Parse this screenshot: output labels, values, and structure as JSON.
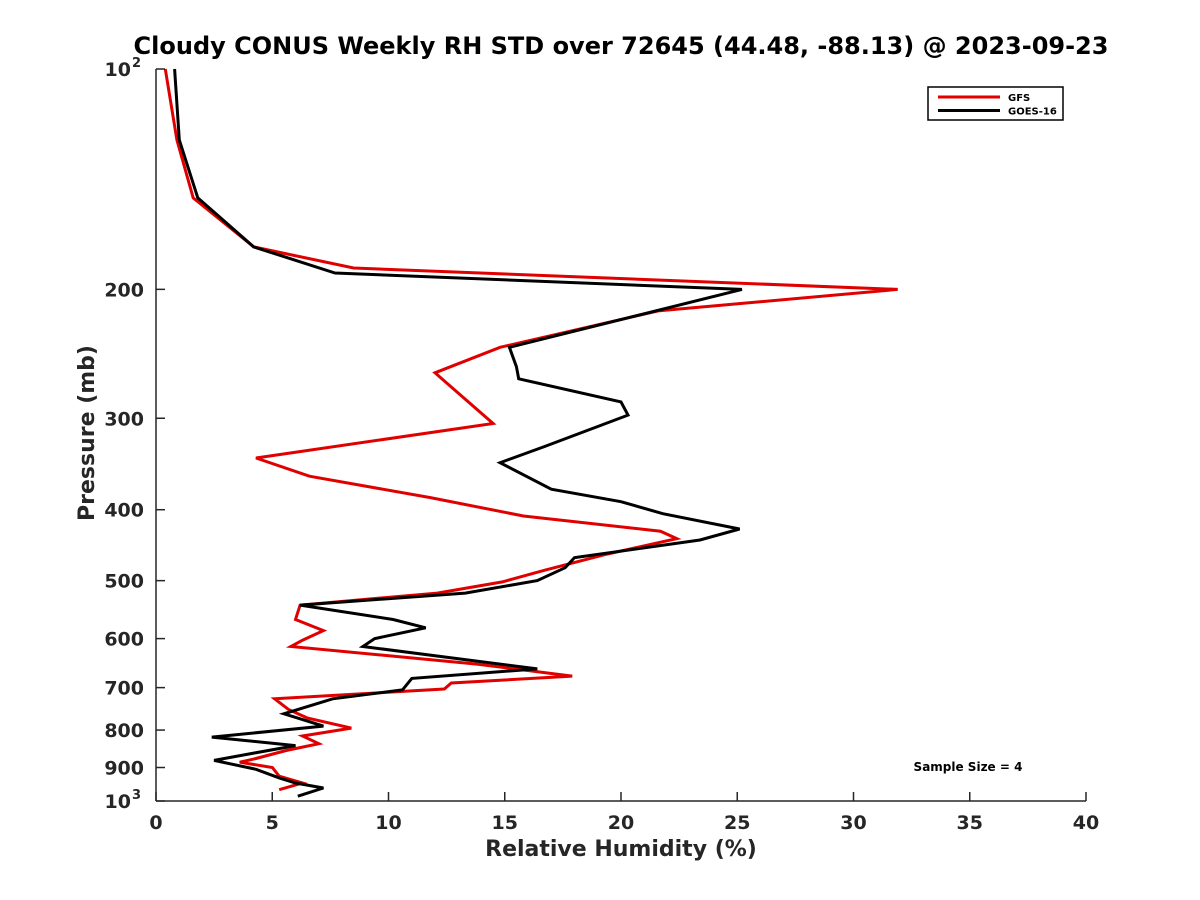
{
  "chart_data": {
    "type": "line",
    "title": "Cloudy CONUS Weekly RH STD over 72645 (44.48, -88.13) @ 2023-09-23",
    "xlabel": "Relative Humidity (%)",
    "ylabel": "Pressure (mb)",
    "xlim": [
      0,
      40
    ],
    "ylim": [
      100,
      1000
    ],
    "y_scale": "log",
    "y_reversed": true,
    "x_ticks": [
      {
        "value": 0,
        "label": "0"
      },
      {
        "value": 5,
        "label": "5"
      },
      {
        "value": 10,
        "label": "10"
      },
      {
        "value": 15,
        "label": "15"
      },
      {
        "value": 20,
        "label": "20"
      },
      {
        "value": 25,
        "label": "25"
      },
      {
        "value": 30,
        "label": "30"
      },
      {
        "value": 35,
        "label": "35"
      },
      {
        "value": 40,
        "label": "40"
      }
    ],
    "y_ticks": [
      {
        "value": 100,
        "label": "10",
        "sup": "2"
      },
      {
        "value": 200,
        "label": "200"
      },
      {
        "value": 300,
        "label": "300"
      },
      {
        "value": 400,
        "label": "400"
      },
      {
        "value": 500,
        "label": "500"
      },
      {
        "value": 600,
        "label": "600"
      },
      {
        "value": 700,
        "label": "700"
      },
      {
        "value": 800,
        "label": "800"
      },
      {
        "value": 900,
        "label": "900"
      },
      {
        "value": 1000,
        "label": "10",
        "sup": "3"
      }
    ],
    "grid": false,
    "legend_position": "top-right",
    "series": [
      {
        "name": "GFS",
        "color": "#e00000",
        "points": [
          [
            0.4,
            100
          ],
          [
            0.9,
            125
          ],
          [
            1.6,
            150
          ],
          [
            4.2,
            175
          ],
          [
            8.5,
            187
          ],
          [
            31.9,
            200
          ],
          [
            21.6,
            214
          ],
          [
            14.8,
            240
          ],
          [
            12.0,
            260
          ],
          [
            14.5,
            305
          ],
          [
            4.3,
            340
          ],
          [
            6.6,
            360
          ],
          [
            11.8,
            385
          ],
          [
            15.8,
            408
          ],
          [
            21.7,
            428
          ],
          [
            22.4,
            438
          ],
          [
            19.4,
            460
          ],
          [
            16.7,
            484
          ],
          [
            14.9,
            502
          ],
          [
            12.1,
            520
          ],
          [
            6.2,
            540
          ],
          [
            6.0,
            565
          ],
          [
            7.2,
            585
          ],
          [
            6.3,
            603
          ],
          [
            5.8,
            615
          ],
          [
            13.8,
            650
          ],
          [
            17.9,
            675
          ],
          [
            12.7,
            690
          ],
          [
            12.4,
            703
          ],
          [
            5.1,
            725
          ],
          [
            5.7,
            750
          ],
          [
            6.5,
            770
          ],
          [
            8.4,
            795
          ],
          [
            6.3,
            815
          ],
          [
            7.0,
            835
          ],
          [
            5.6,
            853
          ],
          [
            4.3,
            875
          ],
          [
            3.6,
            885
          ],
          [
            5.0,
            900
          ],
          [
            5.3,
            925
          ],
          [
            6.3,
            945
          ],
          [
            5.3,
            965
          ]
        ]
      },
      {
        "name": "GOES-16",
        "color": "#000000",
        "points": [
          [
            0.8,
            100
          ],
          [
            1.0,
            125
          ],
          [
            1.8,
            150
          ],
          [
            4.2,
            175
          ],
          [
            7.7,
            190
          ],
          [
            25.2,
            200
          ],
          [
            15.2,
            240
          ],
          [
            15.5,
            255
          ],
          [
            15.6,
            265
          ],
          [
            20.0,
            285
          ],
          [
            20.3,
            297
          ],
          [
            16.7,
            328
          ],
          [
            14.8,
            345
          ],
          [
            17.0,
            375
          ],
          [
            20.0,
            390
          ],
          [
            21.8,
            405
          ],
          [
            25.1,
            425
          ],
          [
            23.4,
            440
          ],
          [
            18.0,
            465
          ],
          [
            17.6,
            480
          ],
          [
            16.4,
            500
          ],
          [
            13.3,
            520
          ],
          [
            6.2,
            540
          ],
          [
            10.2,
            565
          ],
          [
            11.6,
            580
          ],
          [
            9.4,
            600
          ],
          [
            8.9,
            615
          ],
          [
            16.4,
            660
          ],
          [
            11.0,
            680
          ],
          [
            10.6,
            705
          ],
          [
            7.6,
            725
          ],
          [
            5.5,
            760
          ],
          [
            7.2,
            790
          ],
          [
            2.4,
            818
          ],
          [
            6.0,
            840
          ],
          [
            4.2,
            860
          ],
          [
            2.5,
            880
          ],
          [
            4.3,
            905
          ],
          [
            5.3,
            930
          ],
          [
            6.0,
            945
          ],
          [
            7.2,
            960
          ],
          [
            6.1,
            985
          ]
        ]
      }
    ],
    "annotation": "Sample Size = 4"
  }
}
